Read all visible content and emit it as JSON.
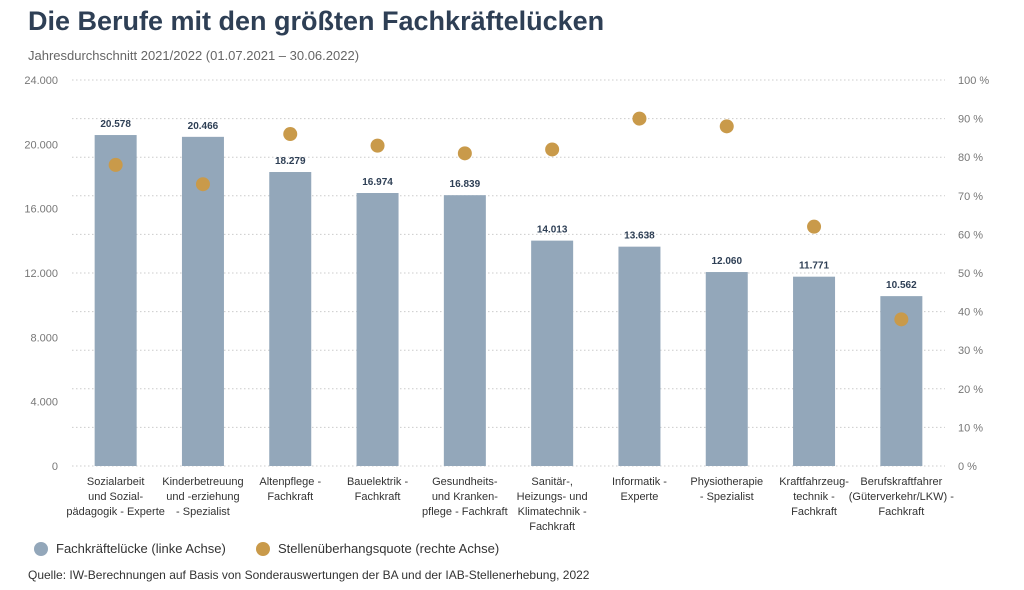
{
  "chart_data": {
    "type": "bar",
    "title": "Die Berufe mit den größten Fachkräftelücken",
    "subtitle": "Jahresdurchschnitt 2021/2022 (01.07.2021 – 30.06.2022)",
    "categories": [
      [
        "Sozialarbeit",
        "und Sozial-",
        "pädagogik - Experte"
      ],
      [
        "Kinderbetreuung",
        "und -erziehung",
        "- Spezialist"
      ],
      [
        "Altenpflege -",
        "Fachkraft"
      ],
      [
        "Bauelektrik -",
        "Fachkraft"
      ],
      [
        "Gesundheits-",
        "und Kranken-",
        "pflege - Fachkraft"
      ],
      [
        "Sanitär-,",
        "Heizungs- und",
        "Klimatechnik -",
        "Fachkraft"
      ],
      [
        "Informatik -",
        "Experte"
      ],
      [
        "Physiotherapie",
        "- Spezialist"
      ],
      [
        "Kraftfahrzeug-",
        "technik -",
        "Fachkraft"
      ],
      [
        "Berufskraftfahrer",
        "(Güterverkehr/LKW) -",
        "Fachkraft"
      ]
    ],
    "series": [
      {
        "name": "Fachkräftelücke (linke Achse)",
        "type": "bar",
        "axis": "left",
        "color": "#93a7ba",
        "values": [
          20578,
          20466,
          18279,
          16974,
          16839,
          14013,
          13638,
          12060,
          11771,
          10562
        ],
        "labels": [
          "20.578",
          "20.466",
          "18.279",
          "16.974",
          "16.839",
          "14.013",
          "13.638",
          "12.060",
          "11.771",
          "10.562"
        ]
      },
      {
        "name": "Stellenüberhangsquote (rechte Achse)",
        "type": "scatter",
        "axis": "right",
        "color": "#c99a4a",
        "values": [
          78,
          73,
          86,
          83,
          81,
          82,
          90,
          88,
          62,
          38
        ]
      }
    ],
    "left_axis": {
      "ylim": [
        0,
        24000
      ],
      "ticks": [
        "0",
        "4.000",
        "8.000",
        "12.000",
        "16.000",
        "20.000",
        "24.000"
      ]
    },
    "right_axis": {
      "ylim": [
        0,
        100
      ],
      "ticks": [
        "0 %",
        "10 %",
        "20 %",
        "30 %",
        "40 %",
        "50 %",
        "60 %",
        "70 %",
        "80 %",
        "90 %",
        "100 %"
      ]
    },
    "grid": true,
    "legend": "bottom-left",
    "source": "Quelle: IW-Berechnungen auf Basis von Sonderauswertungen der BA und der IAB-Stellenerhebung, 2022"
  }
}
